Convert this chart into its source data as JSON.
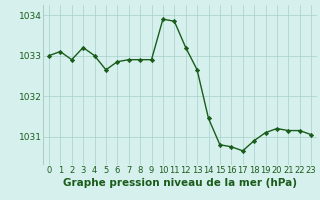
{
  "x": [
    0,
    1,
    2,
    3,
    4,
    5,
    6,
    7,
    8,
    9,
    10,
    11,
    12,
    13,
    14,
    15,
    16,
    17,
    18,
    19,
    20,
    21,
    22,
    23
  ],
  "y": [
    1033.0,
    1033.1,
    1032.9,
    1033.2,
    1033.0,
    1032.65,
    1032.85,
    1032.9,
    1032.9,
    1032.9,
    1033.9,
    1033.85,
    1033.2,
    1032.65,
    1031.45,
    1030.8,
    1030.75,
    1030.65,
    1030.9,
    1031.1,
    1031.2,
    1031.15,
    1031.15,
    1031.05
  ],
  "line_color": "#1a5c1a",
  "marker": "D",
  "marker_size": 2.2,
  "line_width": 1.0,
  "bg_color": "#d6f0ee",
  "grid_color": "#a8cfc8",
  "xlabel": "Graphe pression niveau de la mer (hPa)",
  "xlabel_fontsize": 7.5,
  "tick_label_color": "#1a5c1a",
  "ytick_fontsize": 6.5,
  "xtick_fontsize": 6.0,
  "ylim": [
    1030.3,
    1034.25
  ],
  "yticks": [
    1031,
    1032,
    1033,
    1034
  ],
  "xlim": [
    -0.5,
    23.5
  ],
  "xticks": [
    0,
    1,
    2,
    3,
    4,
    5,
    6,
    7,
    8,
    9,
    10,
    11,
    12,
    13,
    14,
    15,
    16,
    17,
    18,
    19,
    20,
    21,
    22,
    23
  ],
  "xtick_labels": [
    "0",
    "1",
    "2",
    "3",
    "4",
    "5",
    "6",
    "7",
    "8",
    "9",
    "10",
    "11",
    "12",
    "13",
    "14",
    "15",
    "16",
    "17",
    "18",
    "19",
    "20",
    "21",
    "22",
    "23"
  ]
}
